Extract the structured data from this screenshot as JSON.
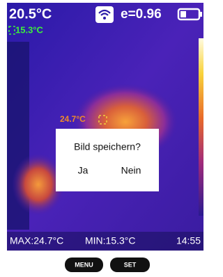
{
  "status": {
    "temperature": "20.5°C",
    "min_marker": "15.3°C",
    "emissivity": "e=0.96"
  },
  "center_marker": "24.7°C",
  "dialog": {
    "title": "Bild speichern?",
    "yes": "Ja",
    "no": "Nein"
  },
  "footer": {
    "max": "MAX:24.7°C",
    "min": "MIN:15.3°C",
    "time": "14:55"
  },
  "buttons": {
    "menu": "MENU",
    "set": "SET"
  }
}
